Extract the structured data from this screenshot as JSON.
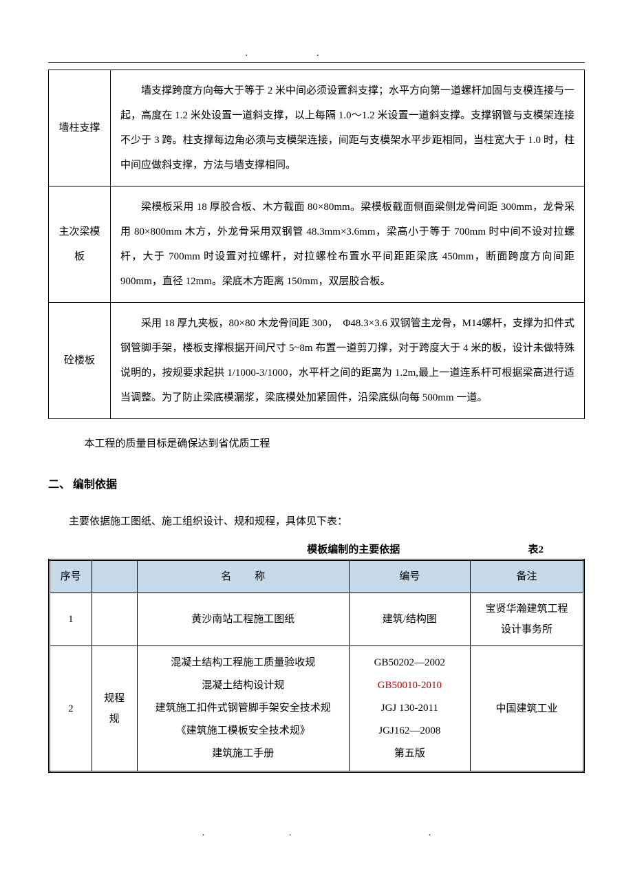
{
  "header_dot": ".",
  "table1": {
    "rows": [
      {
        "label": "墙柱支撑",
        "content": "墙支撑跨度方向每大于等于 2 米中间必须设置斜支撑；水平方向第一道螺杆加固与支模连接与一起，高度在 1.2 米处设置一道斜支撑，以上每隔 1.0～1.2 米设置一道斜支撑。支撑钢管与支模架连接不少于 3 跨。柱支撑每边角必须与支模架连接，间距与支模架水平步距相同，当柱宽大于 1.0 时，柱中间应做斜支撑，方法与墙支撑相同。"
      },
      {
        "label": "主次梁模板",
        "content": "梁模板采用 18 厚胶合板、木方截面 80×80mm。梁模板截面侧面梁侧龙骨间距 300mm，龙骨采用 80×800mm 木方，外龙骨采用双钢管 48.3mm×3.6mm，梁高小于等于 700mm 时中间不设对拉螺杆，大于 700mm 时设置对拉螺杆，对拉螺栓布置水平间距距梁底 450mm，断面跨度方向间距 900mm，直径 12mm。梁底木方距离 150mm，双层胶合板。"
      },
      {
        "label": "砼楼板",
        "content": "采用 18 厚九夹板，80×80 木龙骨间距 300，　Φ48.3×3.6 双钢管主龙骨，M14螺杆，支撑为扣件式钢管脚手架，楼板支撑根据开间尺寸 5~8m 布置一道剪刀撑，对于跨度大于 4 米的板，设计未做特殊说明的，按规要求起拱 1/1000-3/1000，水平杆之间的距离为 1.2m,最上一道连系杆可根据梁高进行适当调整。为了防止梁底模漏浆，梁底模处加紧固件，沿梁底纵向每 500mm 一道。"
      }
    ]
  },
  "quality_goal_text": "本工程的质量目标是确保达到省优质工程",
  "section_heading": "二、 编制依据",
  "basis_intro": "主要依据施工图纸、施工组织设计、规和规程，具体见下表：",
  "table2_title": "模板编制的主要依据",
  "table2_num": "表2",
  "table2": {
    "headers": {
      "seq": "序号",
      "blank": "",
      "name_col_prefix": "名",
      "name_col_suffix": "称",
      "code": "编号",
      "remark": "备注"
    },
    "row1": {
      "seq": "1",
      "name": "黄沙南站工程施工图纸",
      "code": "建筑/结构图",
      "remark_line1": "宝贤华瀚建筑工程",
      "remark_line2": "设计事务所"
    },
    "row2": {
      "seq": "2",
      "type_line1": "规程",
      "type_line2": "规",
      "name_lines": [
        "混凝土结构工程施工质量验收规",
        "混凝土结构设计规",
        "建筑施工扣件式钢管脚手架安全技术规",
        "《建筑施工模板安全技术规》",
        "建筑施工手册"
      ],
      "code_lines": [
        {
          "text": "GB50202—2002",
          "red": false
        },
        {
          "text": "GB50010-2010",
          "red": true
        },
        {
          "text": "JGJ 130-2011",
          "red": false
        },
        {
          "text": "JGJ162—2008",
          "red": false
        },
        {
          "text": "第五版",
          "red": false
        }
      ],
      "remark": "中国建筑工业"
    }
  },
  "colors": {
    "header_bg": "#c5d9e8",
    "text": "#000000",
    "red_text": "#c00000",
    "background": "#ffffff",
    "border": "#000000"
  },
  "typography": {
    "body_font": "SimSun",
    "body_size_pt": 11,
    "heading_size_pt": 12,
    "line_height_body": 2.4
  }
}
